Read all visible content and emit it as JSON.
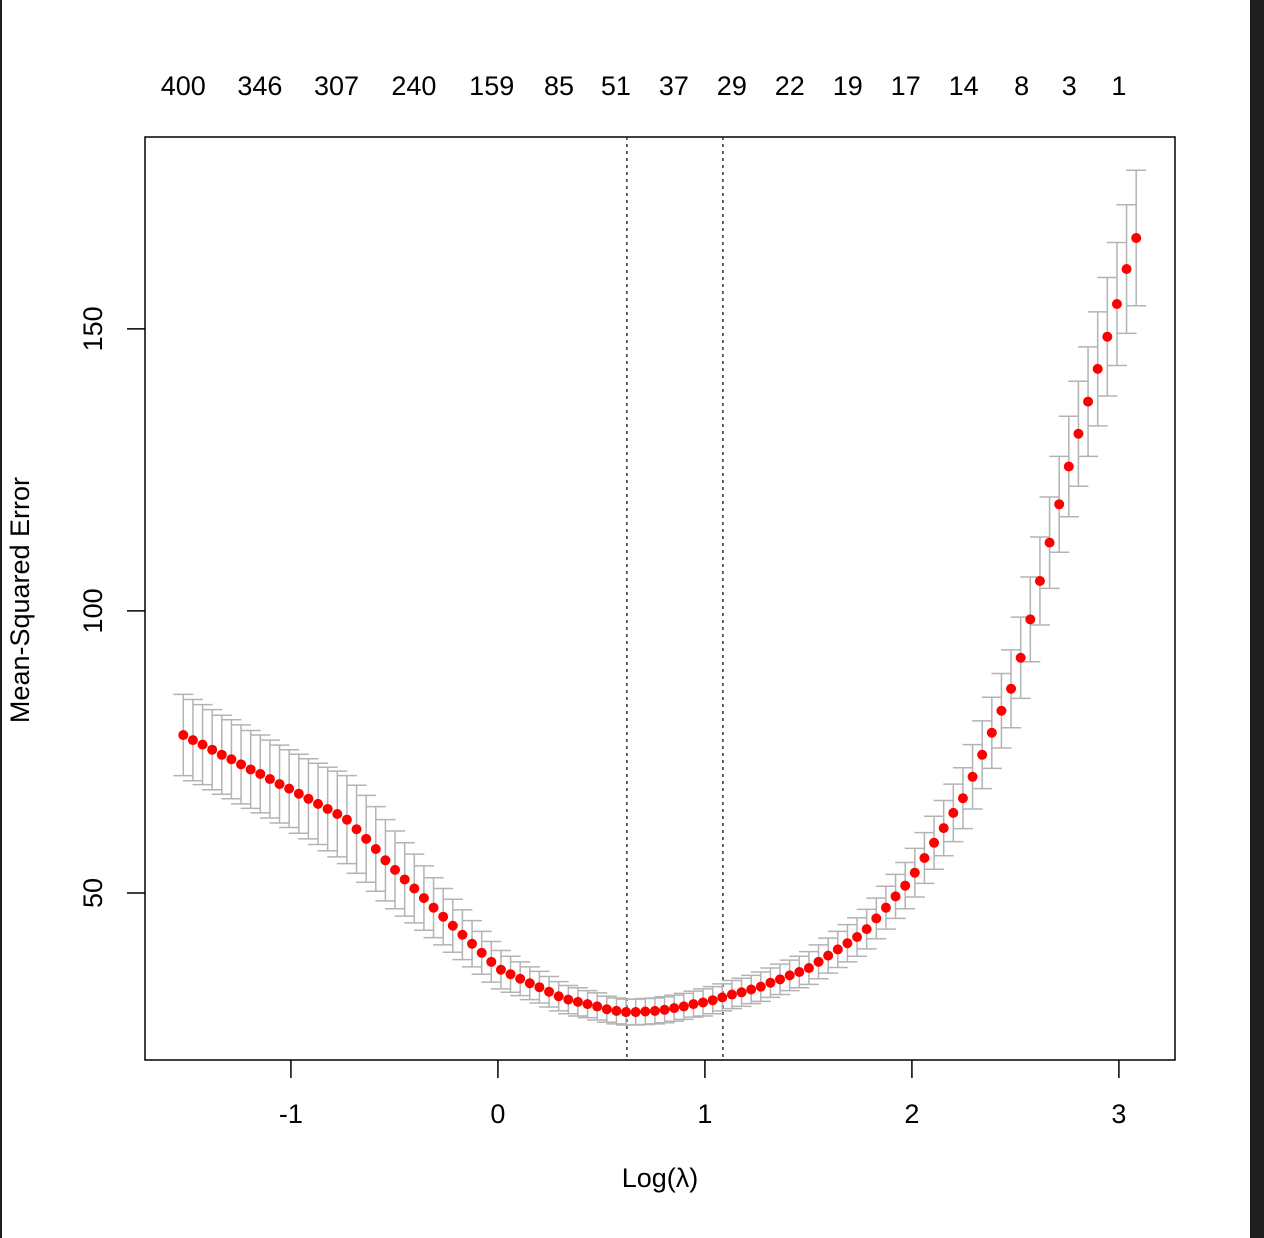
{
  "chart_data": {
    "type": "scatter",
    "x_label": "Log(λ)",
    "y_label": "Mean-Squared Error",
    "color": "#ff0000",
    "error_color": "#b3b3b3",
    "xlim": [
      -1.705,
      3.271
    ],
    "ylim": [
      20.4,
      184.0
    ],
    "xticks": [
      -1,
      0,
      1,
      2,
      3
    ],
    "yticks": [
      50,
      100,
      150
    ],
    "x2ticks": [
      {
        "value": -1.52,
        "label": "400"
      },
      {
        "value": -1.15,
        "label": "346"
      },
      {
        "value": -0.78,
        "label": "307"
      },
      {
        "value": -0.406,
        "label": "240"
      },
      {
        "value": -0.03,
        "label": "159"
      },
      {
        "value": 0.295,
        "label": "85"
      },
      {
        "value": 0.57,
        "label": "51"
      },
      {
        "value": 0.85,
        "label": "37"
      },
      {
        "value": 1.13,
        "label": "29"
      },
      {
        "value": 1.41,
        "label": "22"
      },
      {
        "value": 1.69,
        "label": "19"
      },
      {
        "value": 1.97,
        "label": "17"
      },
      {
        "value": 2.25,
        "label": "14"
      },
      {
        "value": 2.53,
        "label": "8"
      },
      {
        "value": 2.76,
        "label": "3"
      },
      {
        "value": 3.0,
        "label": "1"
      }
    ],
    "vlines": [
      0.623,
      1.087
    ],
    "x": [
      -1.52,
      -1.4735,
      -1.427,
      -1.3805,
      -1.334,
      -1.2875,
      -1.241,
      -1.1945,
      -1.148,
      -1.1015,
      -1.055,
      -1.0085,
      -0.962,
      -0.9155,
      -0.869,
      -0.8225,
      -0.776,
      -0.7295,
      -0.683,
      -0.6365,
      -0.59,
      -0.5435,
      -0.497,
      -0.4505,
      -0.404,
      -0.3575,
      -0.311,
      -0.2645,
      -0.218,
      -0.1715,
      -0.125,
      -0.0785,
      -0.032,
      0.0145,
      0.061,
      0.1075,
      0.154,
      0.2005,
      0.247,
      0.2935,
      0.34,
      0.3865,
      0.433,
      0.4795,
      0.526,
      0.5725,
      0.619,
      0.6655,
      0.712,
      0.7585,
      0.805,
      0.8515,
      0.898,
      0.9445,
      0.991,
      1.0375,
      1.084,
      1.1305,
      1.177,
      1.2235,
      1.27,
      1.3165,
      1.363,
      1.4095,
      1.456,
      1.5025,
      1.549,
      1.5955,
      1.642,
      1.6885,
      1.735,
      1.7815,
      1.828,
      1.8745,
      1.921,
      1.9675,
      2.014,
      2.0605,
      2.107,
      2.1535,
      2.2,
      2.2465,
      2.293,
      2.3395,
      2.386,
      2.4325,
      2.479,
      2.5255,
      2.572,
      2.6185,
      2.665,
      2.7115,
      2.758,
      2.8045,
      2.851,
      2.8975,
      2.944,
      2.9905,
      3.037,
      3.0835
    ],
    "values": [
      78.0,
      77.1,
      76.3,
      75.4,
      74.5,
      73.7,
      72.8,
      71.9,
      71.1,
      70.2,
      69.3,
      68.5,
      67.6,
      66.7,
      65.8,
      64.9,
      64.0,
      63.0,
      61.3,
      59.6,
      57.8,
      55.8,
      54.1,
      52.4,
      50.8,
      49.1,
      47.4,
      45.8,
      44.2,
      42.6,
      41.0,
      39.4,
      37.8,
      36.4,
      35.6,
      34.8,
      34.0,
      33.3,
      32.5,
      31.7,
      31.1,
      30.7,
      30.3,
      29.9,
      29.4,
      29.1,
      28.9,
      28.9,
      29.0,
      29.1,
      29.3,
      29.6,
      29.9,
      30.3,
      30.6,
      31.0,
      31.5,
      32.0,
      32.4,
      32.9,
      33.4,
      34.1,
      34.7,
      35.4,
      36.0,
      36.7,
      37.8,
      38.9,
      40.0,
      41.1,
      42.2,
      43.6,
      45.5,
      47.4,
      49.4,
      51.3,
      53.6,
      56.2,
      58.9,
      61.5,
      64.2,
      66.8,
      70.6,
      74.5,
      78.4,
      82.3,
      86.2,
      91.7,
      98.5,
      105.3,
      112.1,
      118.9,
      125.6,
      131.4,
      137.1,
      142.9,
      148.6,
      154.4,
      160.6,
      166.1
    ],
    "errors": [
      7.2,
      7.2,
      7.1,
      7.1,
      7.0,
      7.0,
      7.0,
      6.9,
      6.9,
      6.9,
      6.9,
      6.9,
      7.0,
      7.1,
      7.2,
      7.4,
      7.6,
      7.8,
      7.8,
      7.7,
      7.5,
      7.2,
      6.9,
      6.5,
      6.1,
      5.7,
      5.3,
      5.0,
      4.7,
      4.4,
      4.1,
      3.8,
      3.6,
      3.4,
      3.2,
      3.0,
      2.9,
      2.8,
      2.7,
      2.6,
      2.5,
      2.5,
      2.4,
      2.4,
      2.3,
      2.3,
      2.3,
      2.3,
      2.3,
      2.3,
      2.3,
      2.3,
      2.3,
      2.3,
      2.4,
      2.4,
      2.4,
      2.5,
      2.5,
      2.5,
      2.6,
      2.6,
      2.7,
      2.7,
      2.8,
      2.9,
      3.0,
      3.1,
      3.2,
      3.3,
      3.4,
      3.5,
      3.6,
      3.8,
      3.9,
      4.1,
      4.3,
      4.5,
      4.7,
      4.9,
      5.1,
      5.4,
      5.7,
      6.0,
      6.3,
      6.6,
      6.9,
      7.2,
      7.5,
      7.8,
      8.1,
      8.5,
      8.9,
      9.3,
      9.7,
      10.1,
      10.5,
      10.9,
      11.4,
      12.0
    ]
  }
}
